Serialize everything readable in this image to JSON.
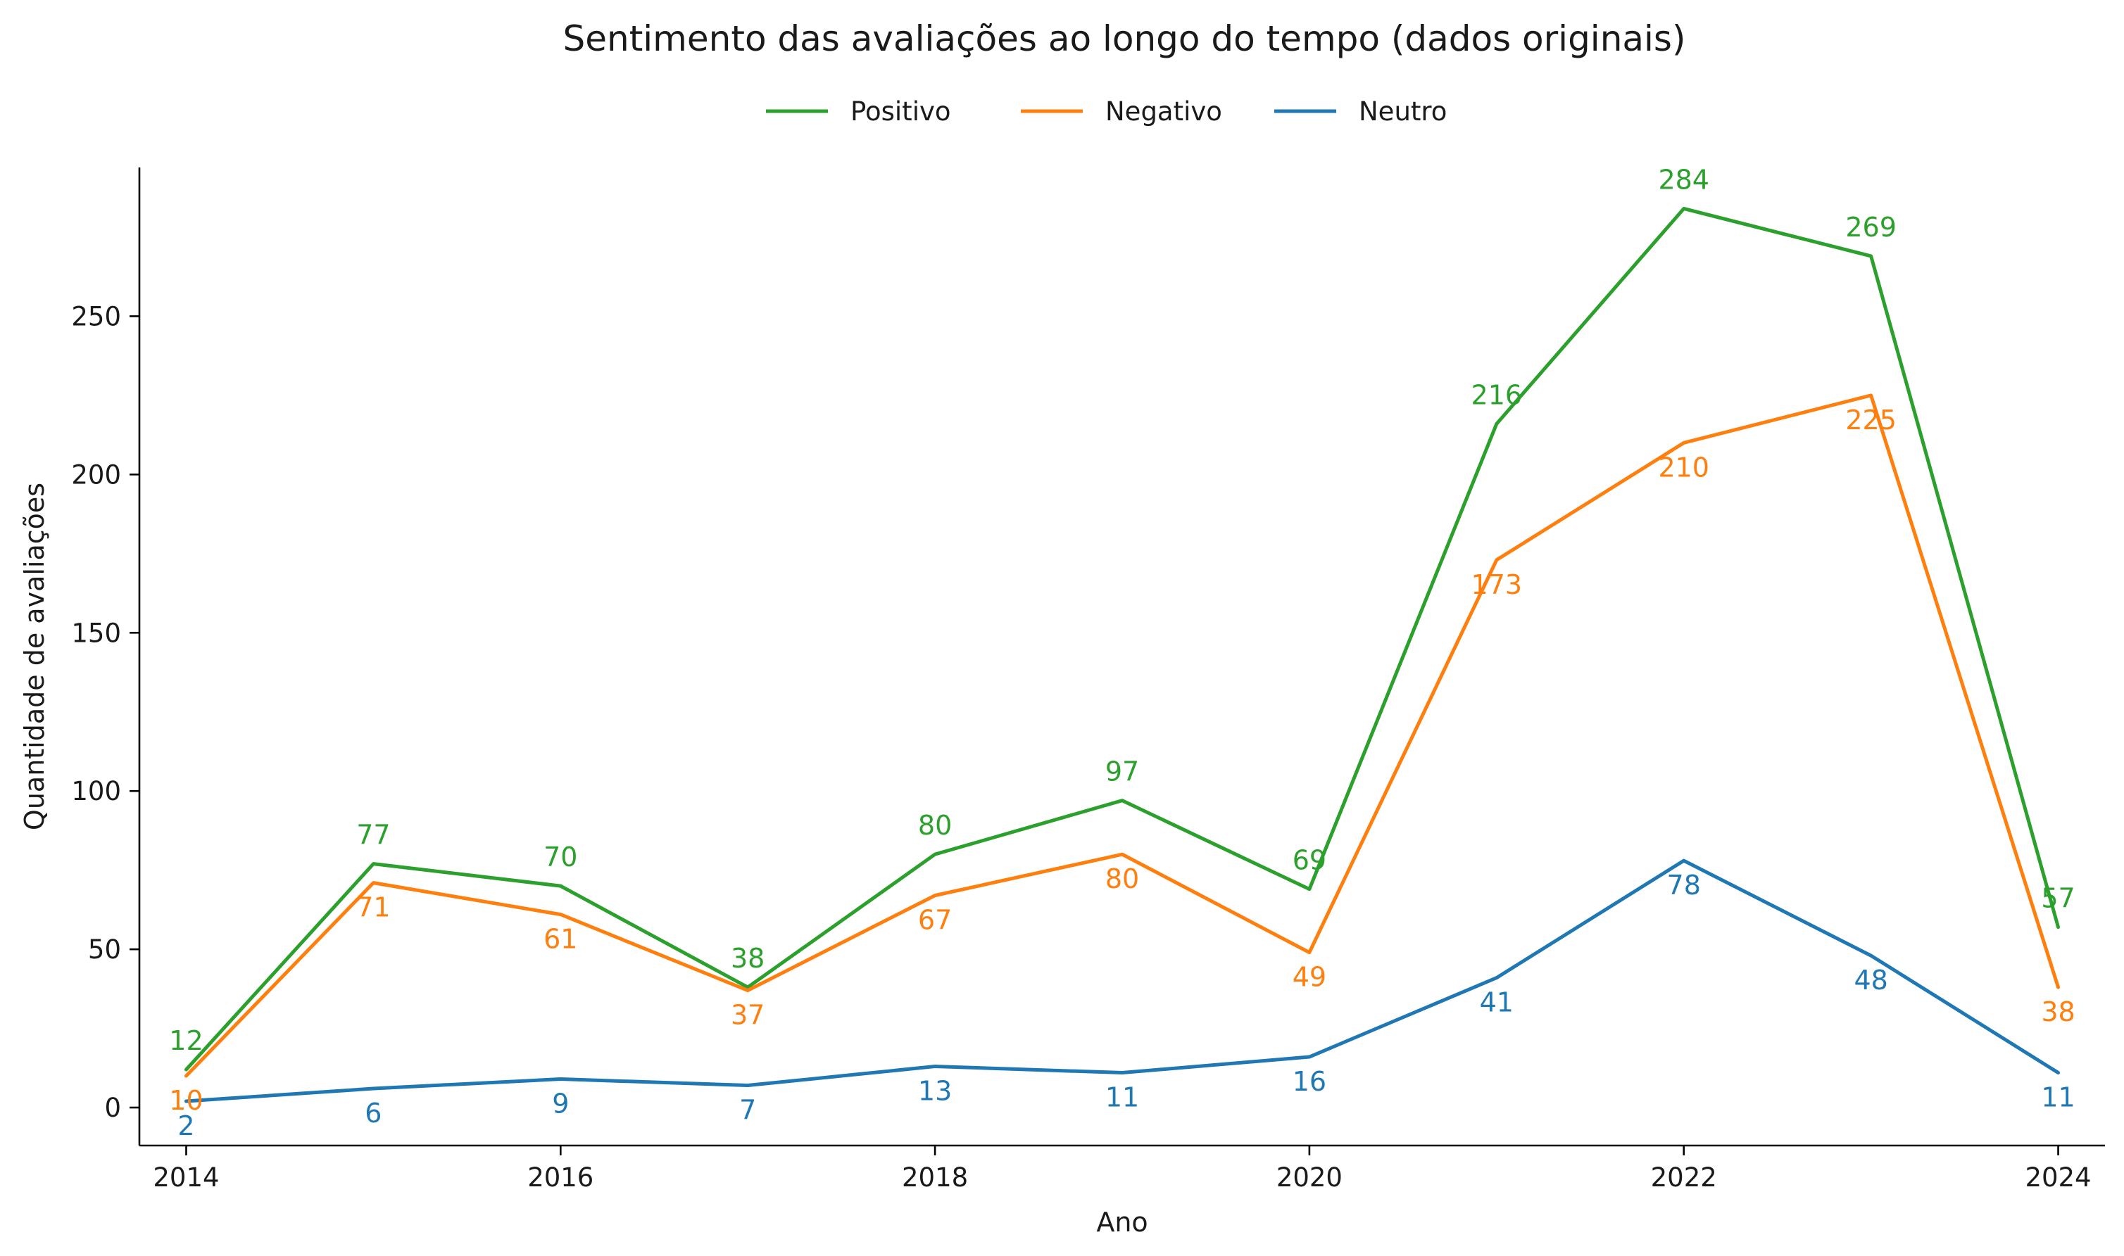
{
  "chart_data": {
    "type": "line",
    "title": "Sentimento das avaliações ao longo do tempo (dados originais)",
    "xlabel": "Ano",
    "ylabel": "Quantidade de avaliações",
    "x": [
      2014,
      2015,
      2016,
      2017,
      2018,
      2019,
      2020,
      2021,
      2022,
      2023,
      2024
    ],
    "xticks": [
      "2014",
      "2016",
      "2018",
      "2020",
      "2022",
      "2024"
    ],
    "yticks": [
      "0",
      "50",
      "100",
      "150",
      "200",
      "250"
    ],
    "xlim": [
      2013.75,
      2024.25
    ],
    "ylim": [
      -12,
      297
    ],
    "grid": false,
    "legend_position": "top-center",
    "series": [
      {
        "name": "Positivo",
        "color": "#2ca02c",
        "values": [
          12,
          77,
          70,
          38,
          80,
          97,
          69,
          216,
          284,
          269,
          57
        ]
      },
      {
        "name": "Negativo",
        "color": "#ff7f0e",
        "values": [
          10,
          71,
          61,
          37,
          67,
          80,
          49,
          173,
          210,
          225,
          38
        ]
      },
      {
        "name": "Neutro",
        "color": "#1f77b4",
        "values": [
          2,
          6,
          9,
          7,
          13,
          11,
          16,
          41,
          78,
          48,
          11
        ]
      }
    ]
  }
}
